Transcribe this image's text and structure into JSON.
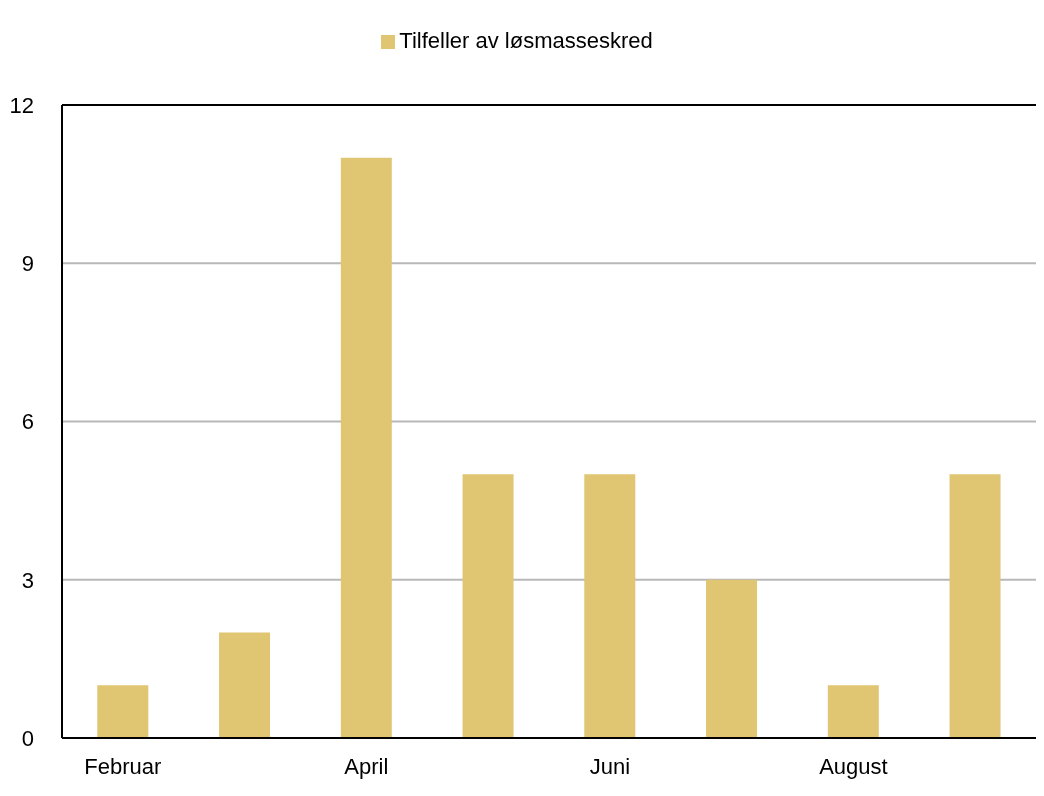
{
  "chart_data": {
    "type": "bar",
    "categories": [
      "Februar",
      null,
      "April",
      null,
      "Juni",
      null,
      "August",
      null
    ],
    "series": [
      {
        "name": "Tilfeller av løsmasseskred",
        "color": "#e0c572",
        "values": [
          1,
          2,
          11,
          5,
          5,
          3,
          1,
          5
        ]
      }
    ],
    "ylim": [
      0,
      12
    ],
    "yticks": [
      0,
      3,
      6,
      9,
      12
    ],
    "grid": "y",
    "legend": "top"
  }
}
